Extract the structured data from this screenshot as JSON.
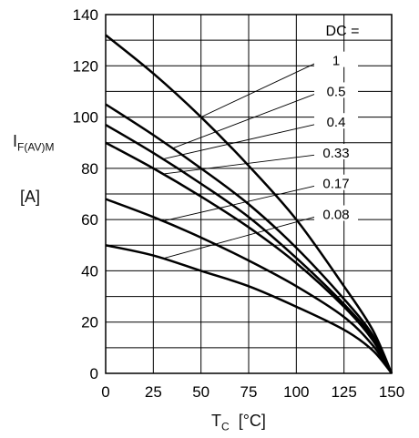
{
  "chart_data": {
    "type": "line",
    "xlabel": "T",
    "xlabel_sub": "C",
    "xlabel_unit": "[°C]",
    "ylabel": "I",
    "ylabel_sub": "F(AV)M",
    "ylabel_unit": "[A]",
    "xlim": [
      0,
      150
    ],
    "ylim": [
      0,
      140
    ],
    "xticks": [
      0,
      25,
      50,
      75,
      100,
      125,
      150
    ],
    "yticks": [
      0,
      20,
      40,
      60,
      80,
      100,
      120,
      140
    ],
    "grid": true,
    "legend_title": "DC =",
    "series": [
      {
        "name": "1",
        "x": [
          0,
          25,
          50,
          75,
          100,
          125,
          140,
          150
        ],
        "y": [
          132,
          117,
          100,
          81,
          60,
          34,
          17,
          0
        ]
      },
      {
        "name": "0.5",
        "x": [
          0,
          25,
          50,
          75,
          100,
          125,
          140,
          150
        ],
        "y": [
          105,
          93,
          80,
          66,
          49,
          29,
          15,
          0
        ]
      },
      {
        "name": "0.4",
        "x": [
          0,
          25,
          50,
          75,
          100,
          125,
          140,
          150
        ],
        "y": [
          97,
          86,
          74,
          61,
          45,
          27,
          14,
          0
        ]
      },
      {
        "name": "0.33",
        "x": [
          0,
          25,
          50,
          75,
          100,
          125,
          140,
          150
        ],
        "y": [
          90,
          80,
          69,
          57,
          43,
          26,
          13,
          0
        ]
      },
      {
        "name": "0.17",
        "x": [
          0,
          25,
          50,
          75,
          100,
          125,
          140,
          150
        ],
        "y": [
          68,
          61,
          53,
          44,
          34,
          22,
          11,
          0
        ]
      },
      {
        "name": "0.08",
        "x": [
          0,
          25,
          50,
          75,
          100,
          125,
          140,
          150
        ],
        "y": [
          50,
          46,
          40,
          34,
          26,
          17,
          9,
          0
        ]
      }
    ]
  }
}
